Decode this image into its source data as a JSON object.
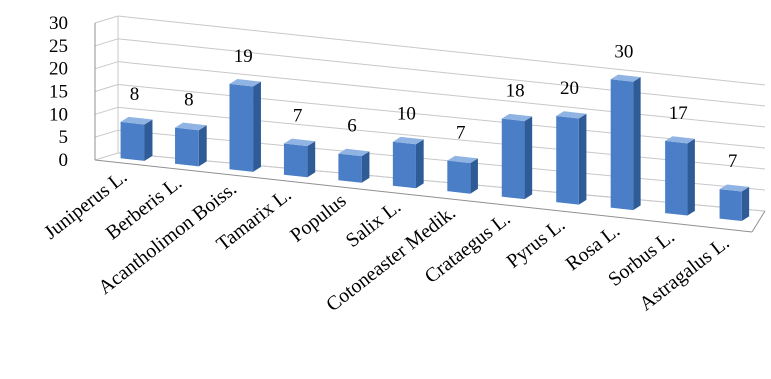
{
  "chart_data": {
    "type": "bar",
    "title": "",
    "xlabel": "",
    "ylabel": "",
    "ylim": [
      0,
      30
    ],
    "yticks": [
      0,
      5,
      10,
      15,
      20,
      25,
      30
    ],
    "grid": true,
    "three_d": true,
    "categories": [
      "Juniperus L.",
      "Berberis L.",
      "Acantholimon Boiss.",
      "Tamarix L.",
      "Populus",
      "Salix L.",
      "Cotoneaster Medik.",
      "Crataegus L.",
      "Pyrus L.",
      "Rosa L.",
      "Sorbus L.",
      "Astragalus L."
    ],
    "values": [
      8,
      8,
      19,
      7,
      6,
      10,
      7,
      18,
      20,
      30,
      17,
      7
    ],
    "data_labels": [
      "8",
      "8",
      "19",
      "7",
      "6",
      "10",
      "7",
      "18",
      "20",
      "30",
      "17",
      "7"
    ],
    "colors": {
      "bar_front": "#4a7ec6",
      "bar_side": "#2f5b96",
      "bar_top": "#8fb3e3",
      "grid": "#c8c8c8",
      "axis": "#909090"
    }
  }
}
